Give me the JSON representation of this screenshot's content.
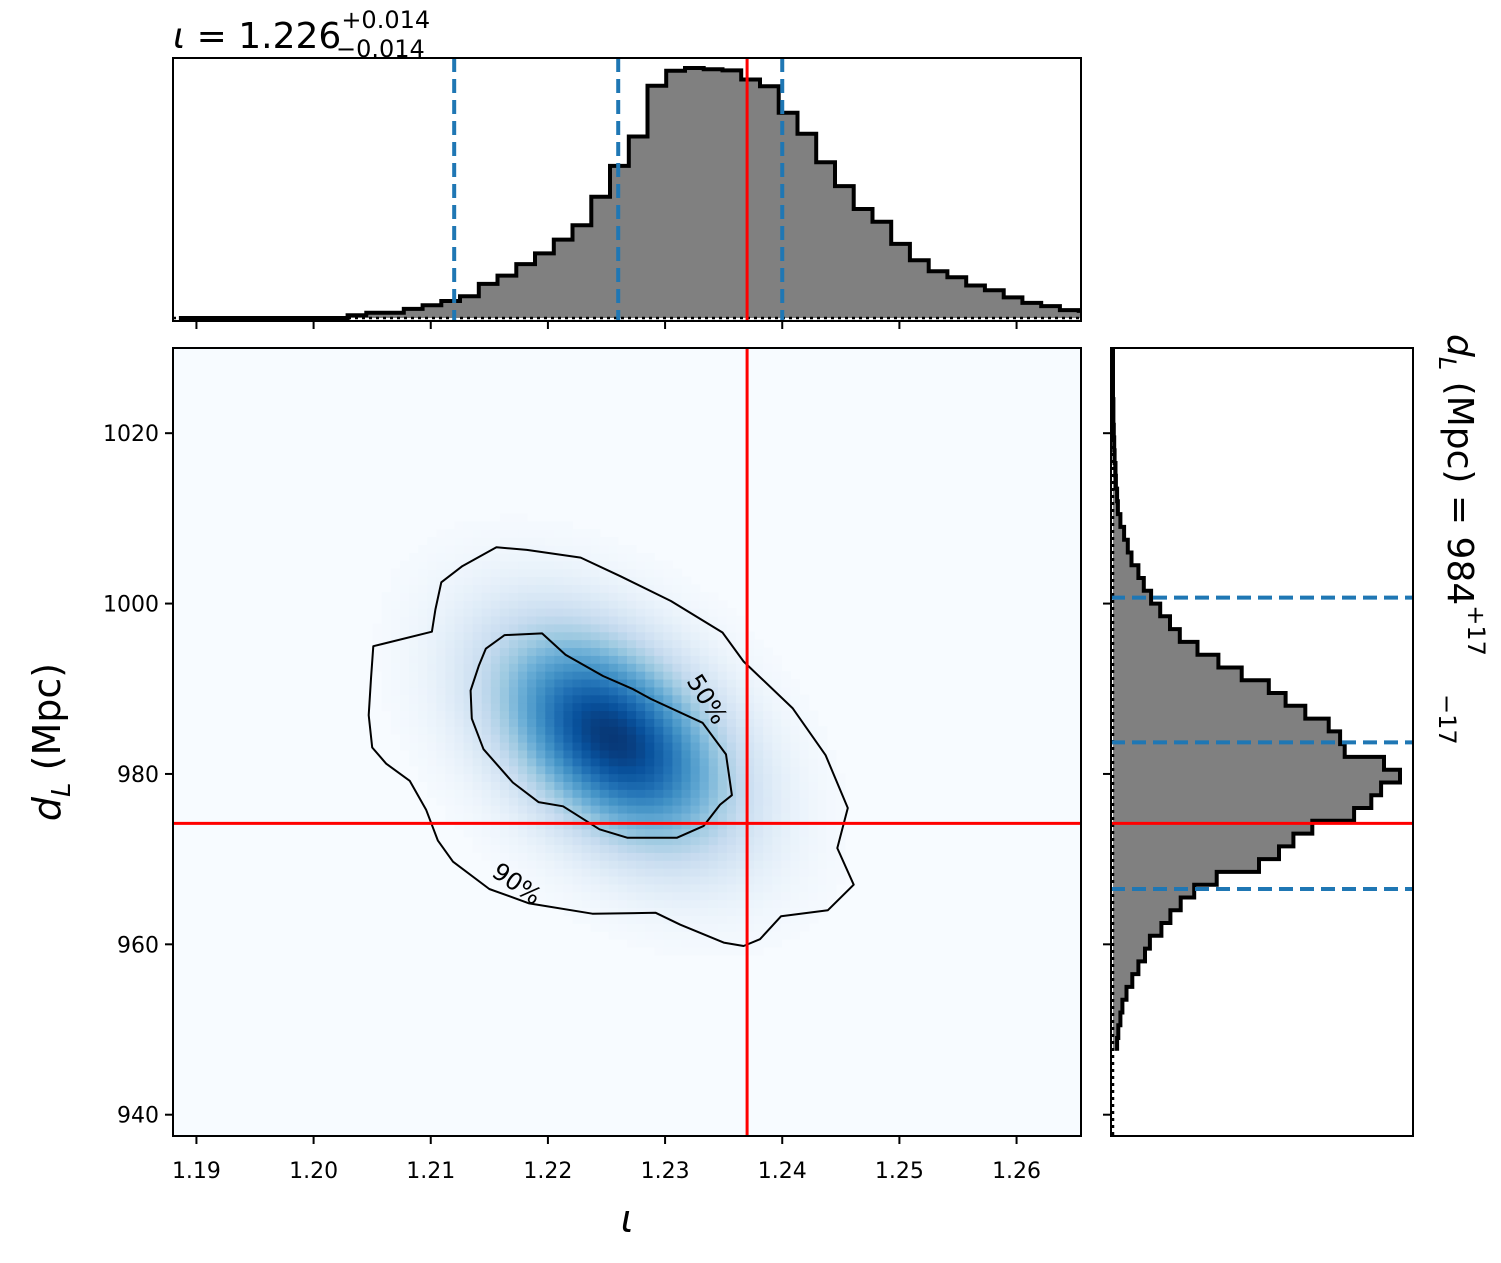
{
  "chart_data": [
    {
      "type": "histogram",
      "panel": "marginal-iota",
      "title": {
        "symbol": "ι",
        "equals": " = ",
        "value": "1.226",
        "plus": "+0.014",
        "minus": "−0.014"
      },
      "xlim": [
        1.188,
        1.2655
      ],
      "bin_start": 1.1885,
      "bin_width": 0.0016,
      "counts": [
        0,
        0,
        0,
        0,
        0,
        0,
        0,
        0,
        0,
        0.007,
        0.013,
        0.013,
        0.023,
        0.032,
        0.043,
        0.055,
        0.086,
        0.107,
        0.136,
        0.163,
        0.198,
        0.234,
        0.306,
        0.384,
        0.458,
        0.586,
        0.624,
        0.631,
        0.628,
        0.625,
        0.602,
        0.585,
        0.518,
        0.465,
        0.393,
        0.333,
        0.275,
        0.243,
        0.187,
        0.146,
        0.118,
        0.103,
        0.082,
        0.07,
        0.052,
        0.038,
        0.03,
        0.02,
        0.018,
        0.01,
        0.005,
        0.003,
        0.003,
        0.002,
        0.002,
        0.001,
        0.001,
        0,
        0
      ],
      "quantiles": [
        1.212,
        1.226,
        1.24
      ],
      "truth": 1.237,
      "colors": {
        "fill": "#808080",
        "edge": "#000000",
        "quantile": "#1f77b4",
        "truth": "#ff0000"
      }
    },
    {
      "type": "heatmap",
      "panel": "joint-density",
      "xlabel": "ι",
      "ylabel_symbol": "d",
      "ylabel_sub": "L",
      "ylabel_unit": " (Mpc)",
      "xlim": [
        1.188,
        1.2655
      ],
      "ylim": [
        937.5,
        1030
      ],
      "xticks": [
        1.19,
        1.2,
        1.21,
        1.22,
        1.23,
        1.24,
        1.25,
        1.26
      ],
      "xtick_labels": [
        "1.19",
        "1.20",
        "1.21",
        "1.22",
        "1.23",
        "1.24",
        "1.25",
        "1.26"
      ],
      "yticks": [
        940,
        960,
        980,
        1000,
        1020
      ],
      "ytick_labels": [
        "940",
        "960",
        "980",
        "1000",
        "1020"
      ],
      "peak": {
        "x": 1.2255,
        "y": 984.3
      },
      "contours": [
        {
          "label": "50%",
          "points": [
            [
              1.2147,
              994.7
            ],
            [
              1.2163,
              996.3
            ],
            [
              1.2195,
              996.5
            ],
            [
              1.2215,
              994.0
            ],
            [
              1.2247,
              991.5
            ],
            [
              1.2272,
              990.0
            ],
            [
              1.2288,
              988.8
            ],
            [
              1.2332,
              986.0
            ],
            [
              1.2352,
              982.3
            ],
            [
              1.2357,
              977.5
            ],
            [
              1.2347,
              976.4
            ],
            [
              1.2333,
              973.9
            ],
            [
              1.231,
              972.5
            ],
            [
              1.2268,
              972.5
            ],
            [
              1.2244,
              973.5
            ],
            [
              1.2213,
              976.2
            ],
            [
              1.2192,
              976.7
            ],
            [
              1.217,
              979.0
            ],
            [
              1.2145,
              982.9
            ],
            [
              1.2135,
              986.5
            ],
            [
              1.2134,
              989.8
            ],
            [
              1.2141,
              992.7
            ]
          ],
          "label_pos": {
            "x": 1.2335,
            "y": 988.7,
            "angle": 58
          }
        },
        {
          "label": "90%",
          "points": [
            [
              1.2101,
              996.7
            ],
            [
              1.2104,
              999.3
            ],
            [
              1.2109,
              1002.5
            ],
            [
              1.2127,
              1004.4
            ],
            [
              1.2156,
              1006.6
            ],
            [
              1.2182,
              1006.3
            ],
            [
              1.2228,
              1005.4
            ],
            [
              1.2262,
              1003.2
            ],
            [
              1.2305,
              1000.3
            ],
            [
              1.2349,
              996.6
            ],
            [
              1.2367,
              993.2
            ],
            [
              1.2409,
              987.7
            ],
            [
              1.2437,
              982.2
            ],
            [
              1.2456,
              976.0
            ],
            [
              1.2447,
              971.3
            ],
            [
              1.2461,
              967.0
            ],
            [
              1.2439,
              964.0
            ],
            [
              1.2399,
              963.3
            ],
            [
              1.2381,
              960.6
            ],
            [
              1.2367,
              959.8
            ],
            [
              1.235,
              960.2
            ],
            [
              1.2313,
              962.3
            ],
            [
              1.2292,
              963.7
            ],
            [
              1.2238,
              963.6
            ],
            [
              1.2184,
              964.8
            ],
            [
              1.215,
              966.5
            ],
            [
              1.2119,
              969.7
            ],
            [
              1.2106,
              972.2
            ],
            [
              1.2096,
              975.8
            ],
            [
              1.2082,
              979.2
            ],
            [
              1.2062,
              981.2
            ],
            [
              1.205,
              983.1
            ],
            [
              1.2047,
              986.9
            ],
            [
              1.2049,
              991.2
            ],
            [
              1.2051,
              995.0
            ]
          ],
          "label_pos": {
            "x": 1.2173,
            "y": 967.0,
            "angle": 35
          }
        }
      ],
      "truth": {
        "x": 1.237,
        "y": 974.2
      },
      "colormap": "Blues",
      "grid": false
    },
    {
      "type": "histogram",
      "panel": "marginal-dL",
      "orientation": "horizontal",
      "title": {
        "symbol": "d",
        "sub": "L",
        "unit": " (Mpc)",
        "equals": " = ",
        "value": "984",
        "plus": "+17",
        "minus": "−17"
      },
      "ylim": [
        937.5,
        1030
      ],
      "bin_start": 947.5,
      "bin_width": 1.5,
      "counts": [
        0.01,
        0.013,
        0.018,
        0.023,
        0.033,
        0.047,
        0.062,
        0.078,
        0.09,
        0.118,
        0.14,
        0.165,
        0.198,
        0.253,
        0.356,
        0.405,
        0.44,
        0.486,
        0.588,
        0.63,
        0.654,
        0.7,
        0.661,
        0.565,
        0.554,
        0.526,
        0.469,
        0.421,
        0.38,
        0.314,
        0.257,
        0.206,
        0.163,
        0.139,
        0.115,
        0.093,
        0.075,
        0.062,
        0.045,
        0.036,
        0.027,
        0.018,
        0.012,
        0.01,
        0.007,
        0.006,
        0.004,
        0.003,
        0.002,
        0.001,
        0.001,
        0,
        0,
        0,
        0
      ],
      "quantiles": [
        966.5,
        983.7,
        1000.7
      ],
      "truth": 974.2,
      "colors": {
        "fill": "#808080",
        "edge": "#000000",
        "quantile": "#1f77b4",
        "truth": "#ff0000"
      }
    }
  ]
}
